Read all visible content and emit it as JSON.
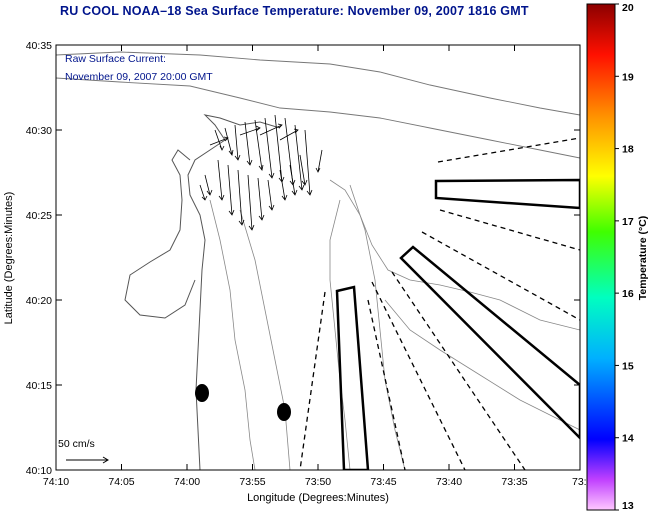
{
  "title": "RU COOL  NOAA–18  Sea Surface Temperature:  November 09, 2007 1816 GMT",
  "annotation": {
    "line1": "Raw Surface Current:",
    "line2": "November 09, 2007 20:00 GMT"
  },
  "scale_label": "50 cm/s",
  "axes": {
    "xlabel": "Longitude (Degrees:Minutes)",
    "ylabel": "Latitude (Degrees:Minutes)",
    "xticks": [
      "74:10",
      "74:05",
      "74:00",
      "73:55",
      "73:50",
      "73:45",
      "73:40",
      "73:35",
      "73:3"
    ],
    "yticks": [
      "40:10",
      "40:15",
      "40:20",
      "40:25",
      "40:30",
      "40:35"
    ]
  },
  "colorbar": {
    "label": "Temperature (°C)",
    "ticks": [
      "13",
      "14",
      "15",
      "16",
      "17",
      "18",
      "19",
      "20"
    ],
    "range": [
      13,
      20
    ]
  },
  "colors": {
    "title": "#00148c",
    "annotation": "#00148c"
  }
}
